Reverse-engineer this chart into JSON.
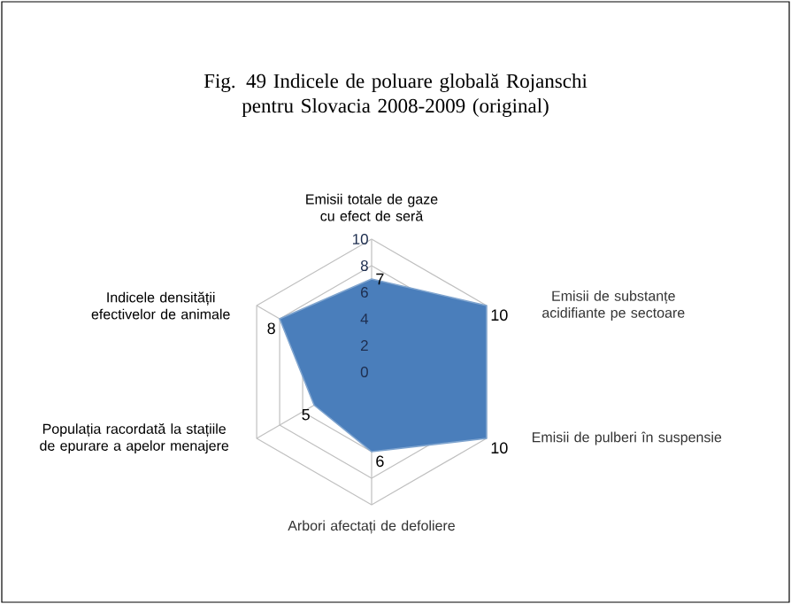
{
  "chart_data": {
    "type": "radar",
    "title": "Fig. 49 Indicele de poluare globală Rojanschi pentru Slovacia 2008-2009 (original)",
    "categories": [
      "Emisii totale de gaze cu efect de seră",
      "Emisii de substanțe acidifiante pe sectoare",
      "Emisii de pulberi în suspensie",
      "Arbori afectați de defoliere",
      "Populația racordată la stațiile de epurare a apelor menajere",
      "Indicele densității efectivelor de animale"
    ],
    "series": [
      {
        "color": "#4a7ebb",
        "values": [
          7,
          10,
          10,
          6,
          5,
          8
        ]
      }
    ],
    "ylim": [
      0,
      10
    ],
    "yticks": [
      0,
      2,
      4,
      6,
      8,
      10
    ],
    "grid": true,
    "data_labels": true
  }
}
